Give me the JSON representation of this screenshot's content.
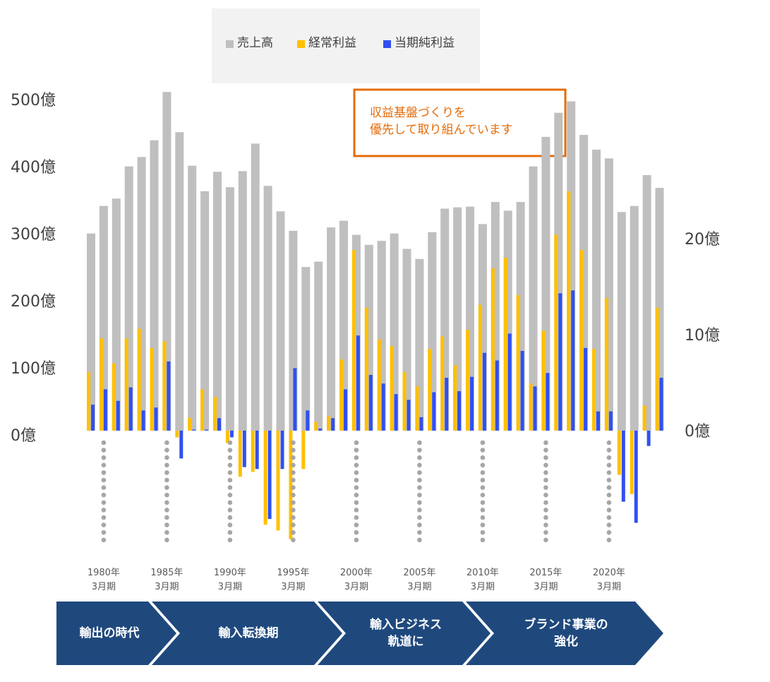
{
  "chart_data": {
    "type": "bar",
    "categories": [
      null,
      "1980年\n3月期",
      null,
      null,
      null,
      null,
      "1985年\n3月期",
      null,
      null,
      null,
      null,
      "1990年\n3月期",
      null,
      null,
      null,
      null,
      "1995年\n3月期",
      null,
      null,
      null,
      null,
      "2000年\n3月期",
      null,
      null,
      null,
      null,
      "2005年\n3月期",
      null,
      null,
      null,
      null,
      "2010年\n3月期",
      null,
      null,
      null,
      null,
      "2015年\n3月期",
      null,
      null,
      null,
      null,
      "2020年\n3月期",
      null,
      null,
      null,
      null
    ],
    "series": [
      {
        "name": "売上高",
        "color": "#bfbfbf",
        "axis": "y",
        "values": [
          294,
          335,
          346,
          394,
          408,
          433,
          505,
          445,
          395,
          357,
          386,
          363,
          387,
          428,
          365,
          327,
          298,
          244,
          252,
          303,
          313,
          292,
          277,
          283,
          294,
          271,
          256,
          296,
          331,
          333,
          334,
          308,
          341,
          328,
          341,
          394,
          438,
          474,
          491,
          441,
          419,
          406,
          326,
          335,
          381,
          362
        ]
      },
      {
        "name": "経常利益",
        "color": "#ffc000",
        "axis": "y2",
        "values": [
          6.1,
          9.6,
          7.0,
          9.6,
          10.6,
          8.6,
          9.3,
          -0.7,
          1.3,
          4.3,
          3.5,
          -1.3,
          -4.8,
          -4.3,
          -9.8,
          -10.4,
          -11.3,
          -4.0,
          0.9,
          1.5,
          7.4,
          18.8,
          12.8,
          9.5,
          8.8,
          6.1,
          4.6,
          8.5,
          9.8,
          6.8,
          10.5,
          13.1,
          16.9,
          18.0,
          14.1,
          4.9,
          10.4,
          20.4,
          24.9,
          18.8,
          8.5,
          13.8,
          -4.6,
          -6.6,
          2.6,
          12.8
        ]
      },
      {
        "name": "当期純利益",
        "color": "#3050f0",
        "axis": "y2",
        "values": [
          2.7,
          4.3,
          3.1,
          4.5,
          2.1,
          2.4,
          7.2,
          -2.9,
          0.1,
          0.1,
          1.3,
          -0.7,
          -3.8,
          -4.0,
          -9.2,
          -4.0,
          6.5,
          2.1,
          0.2,
          1.3,
          4.3,
          9.9,
          5.8,
          4.9,
          3.8,
          3.2,
          1.4,
          4.0,
          5.5,
          4.1,
          5.6,
          8.1,
          7.3,
          10.1,
          8.3,
          4.6,
          6.0,
          14.3,
          14.6,
          8.6,
          2.0,
          2.0,
          -7.4,
          -9.6,
          -1.6,
          5.5
        ]
      }
    ],
    "ylim": [
      -179,
      520
    ],
    "yticks": [
      {
        "value": 0,
        "label": "0億"
      },
      {
        "value": 100,
        "label": "100億"
      },
      {
        "value": 200,
        "label": "200億"
      },
      {
        "value": 300,
        "label": "300億"
      },
      {
        "value": 400,
        "label": "400億"
      },
      {
        "value": 500,
        "label": "500億"
      }
    ],
    "y2lim": [
      -12.5,
      36.3
    ],
    "y2ticks": [
      {
        "value": 0,
        "label": "0億"
      },
      {
        "value": 10,
        "label": "10億"
      },
      {
        "value": 20,
        "label": "20億"
      }
    ],
    "annotation": "収益基盤づくりを\n優先して取り組んでいます"
  },
  "phases": [
    "輸出の時代",
    "輸入転換期",
    "輸入ビジネス\n軌道に",
    "ブランド事業の\n強化"
  ]
}
